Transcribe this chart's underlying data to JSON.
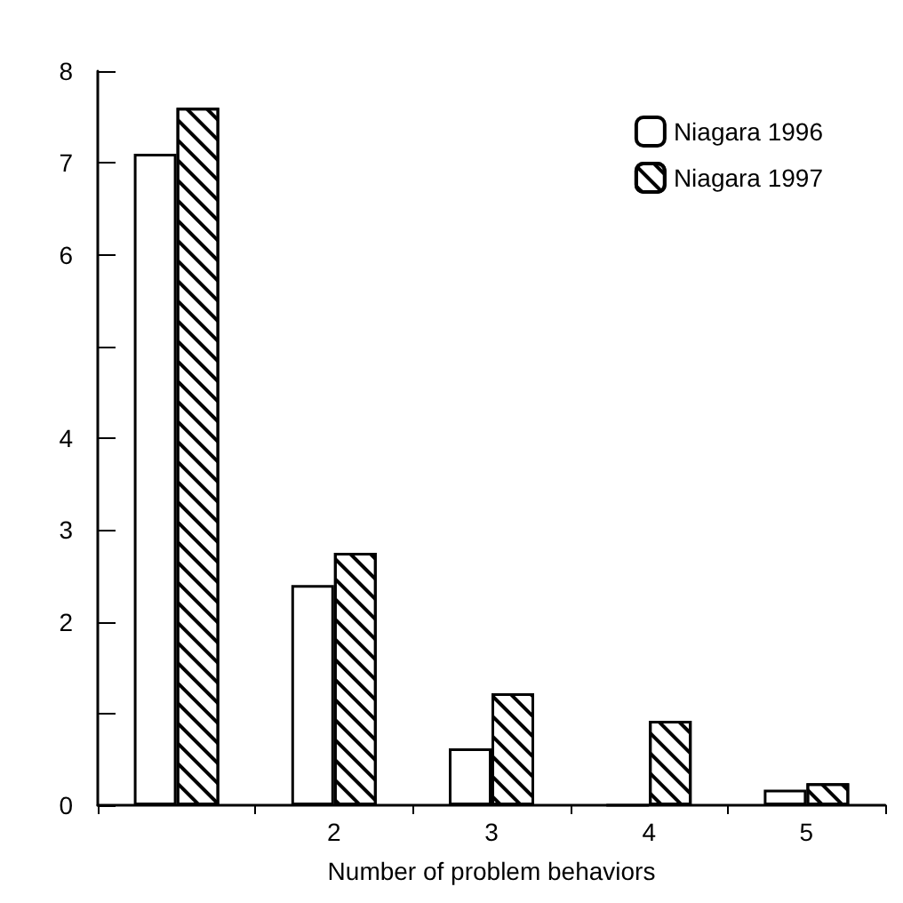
{
  "chart_data": {
    "type": "bar",
    "xlabel": "Number of problem behaviors",
    "categories": [
      null,
      "2",
      "3",
      "4",
      "5"
    ],
    "series": [
      {
        "name": "Niagara 1996",
        "color": "#ffffff",
        "values": [
          7.1,
          2.4,
          0.62,
          0,
          0.17
        ]
      },
      {
        "name": "Niagara 1997",
        "color": "#ffffff",
        "values": [
          7.6,
          2.75,
          1.22,
          0.92,
          0.24
        ]
      }
    ],
    "ylim": [
      0,
      8
    ],
    "yticks": [
      0,
      {
        "value": 1,
        "label": null
      },
      2,
      3,
      4,
      {
        "value": 5,
        "label": null
      },
      6,
      7,
      8
    ],
    "grid": false,
    "legend": "top right"
  }
}
